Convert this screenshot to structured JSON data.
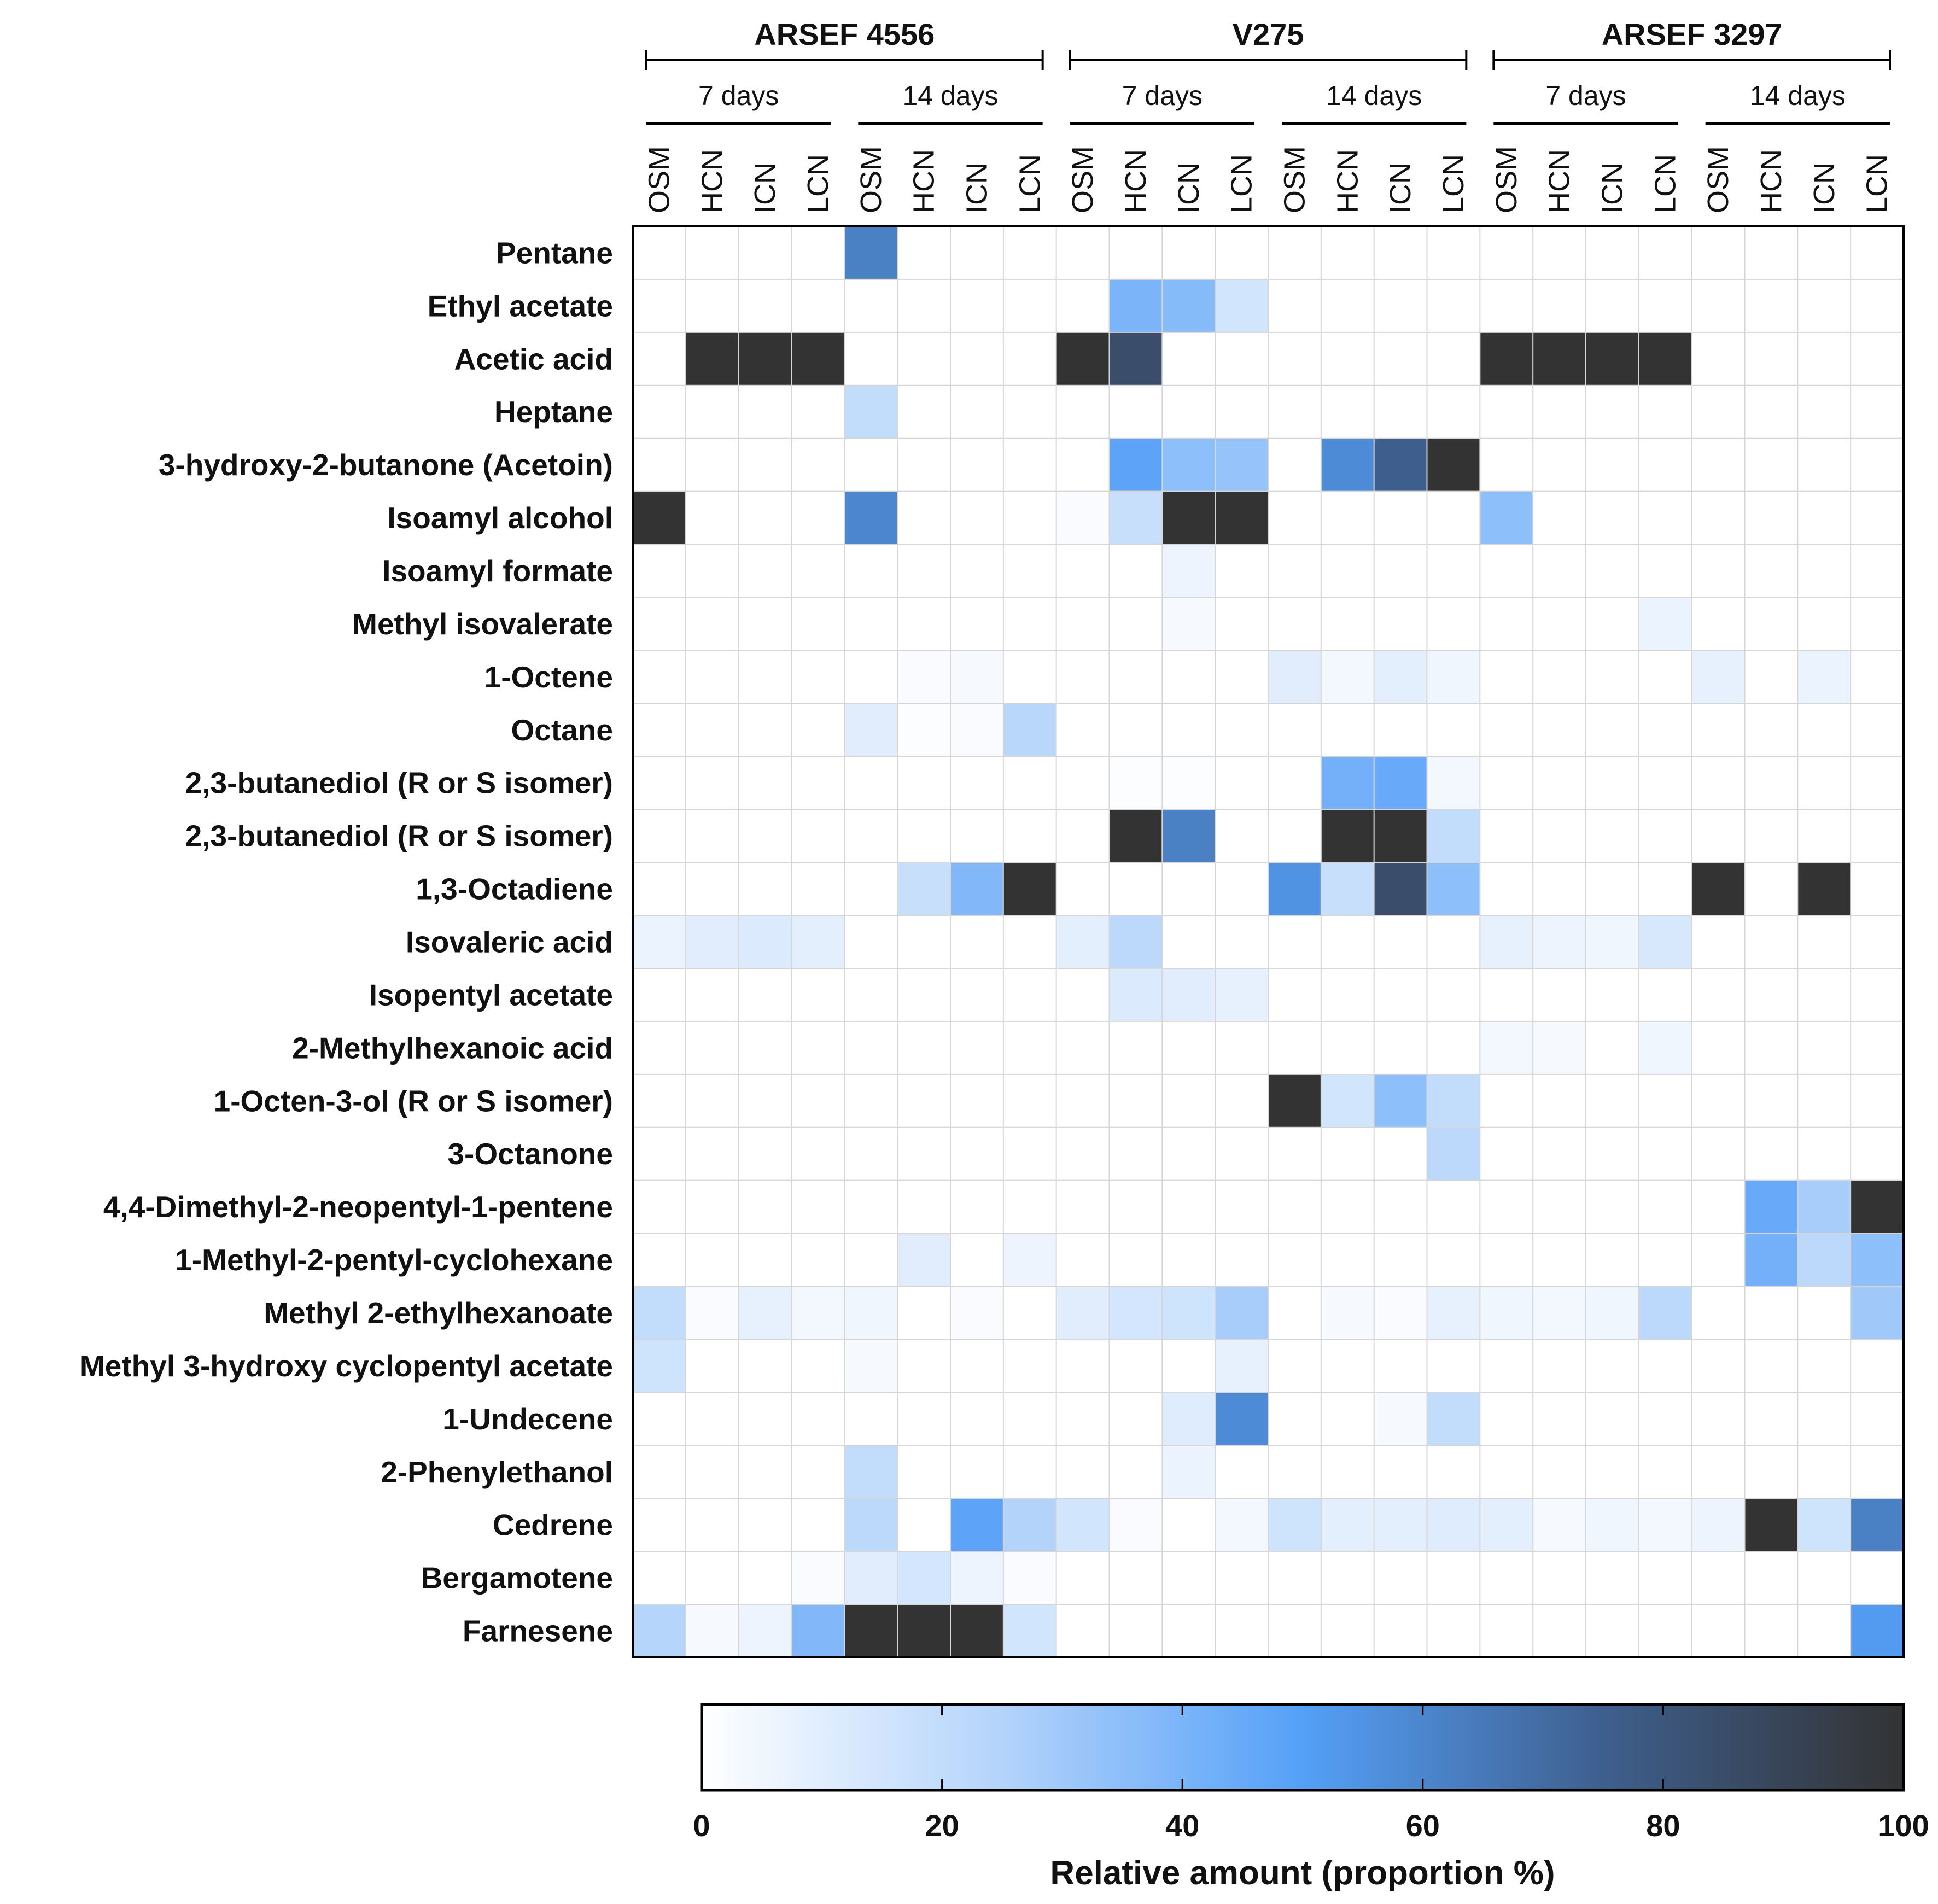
{
  "chart_data": {
    "type": "heatmap",
    "title": "",
    "strains": [
      {
        "name": "ARSEF 4556",
        "periods": [
          "7 days",
          "14 days"
        ]
      },
      {
        "name": "V275",
        "periods": [
          "7 days",
          "14 days"
        ]
      },
      {
        "name": "ARSEF 3297",
        "periods": [
          "7 days",
          "14 days"
        ]
      }
    ],
    "conditions": [
      "OSM",
      "HCN",
      "ICN",
      "LCN"
    ],
    "rows": [
      "Pentane",
      "Ethyl acetate",
      "Acetic acid",
      "Heptane",
      "3-hydroxy-2-butanone (Acetoin)",
      "Isoamyl alcohol",
      "Isoamyl formate",
      "Methyl isovalerate",
      "1-Octene",
      "Octane",
      "2,3-butanediol (R or S isomer)",
      "2,3-butanediol (R or S isomer)",
      "1,3-Octadiene",
      "Isovaleric acid",
      "Isopentyl acetate",
      "2-Methylhexanoic acid",
      "1-Octen-3-ol (R or S isomer)",
      "3-Octanone",
      "4,4-Dimethyl-2-neopentyl-1-pentene",
      "1-Methyl-2-pentyl-cyclohexane",
      "Methyl 2-ethylhexanoate",
      "Methyl 3-hydroxy cyclopentyl acetate",
      "1-Undecene",
      "2-Phenylethanol",
      "Cedrene",
      "Bergamotene",
      "Farnesene"
    ],
    "values": [
      [
        0,
        0,
        0,
        0,
        62,
        0,
        0,
        0,
        0,
        0,
        0,
        0,
        0,
        0,
        0,
        0,
        0,
        0,
        0,
        0,
        0,
        0,
        0,
        0
      ],
      [
        0,
        0,
        0,
        0,
        0,
        0,
        0,
        0,
        0,
        40,
        37,
        15,
        0,
        0,
        0,
        0,
        0,
        0,
        0,
        0,
        0,
        0,
        0,
        0
      ],
      [
        0,
        100,
        100,
        100,
        0,
        0,
        0,
        0,
        100,
        85,
        0,
        0,
        0,
        0,
        0,
        0,
        100,
        100,
        100,
        100,
        0,
        0,
        0,
        0
      ],
      [
        0,
        0,
        0,
        0,
        20,
        0,
        0,
        0,
        0,
        0,
        0,
        0,
        0,
        0,
        0,
        0,
        0,
        0,
        0,
        0,
        0,
        0,
        0,
        0
      ],
      [
        0,
        0,
        0,
        0,
        0,
        0,
        0,
        0,
        0,
        48,
        35,
        33,
        0,
        58,
        75,
        100,
        0,
        0,
        0,
        0,
        0,
        0,
        0,
        0
      ],
      [
        100,
        0,
        0,
        0,
        60,
        0,
        0,
        0,
        2,
        18,
        100,
        100,
        0,
        0,
        0,
        0,
        35,
        0,
        0,
        0,
        0,
        0,
        0,
        0
      ],
      [
        0,
        0,
        0,
        0,
        0,
        0,
        0,
        0,
        0,
        0,
        6,
        0,
        0,
        0,
        0,
        0,
        0,
        0,
        0,
        0,
        0,
        0,
        0,
        0
      ],
      [
        0,
        0,
        0,
        0,
        0,
        0,
        0,
        0,
        0,
        0,
        3,
        0,
        0,
        0,
        0,
        0,
        0,
        0,
        0,
        7,
        0,
        0,
        0,
        0
      ],
      [
        0,
        0,
        0,
        0,
        0,
        2,
        3,
        0,
        0,
        0,
        0,
        0,
        10,
        4,
        9,
        5,
        0,
        0,
        0,
        0,
        8,
        0,
        7,
        0
      ],
      [
        0,
        0,
        0,
        0,
        10,
        1,
        2,
        23,
        0,
        0,
        0,
        0,
        0,
        0,
        0,
        0,
        0,
        0,
        0,
        0,
        0,
        0,
        0,
        0
      ],
      [
        0,
        0,
        0,
        0,
        0,
        0,
        0,
        0,
        0,
        1,
        1,
        0,
        0,
        42,
        45,
        4,
        0,
        0,
        0,
        0,
        0,
        0,
        0,
        0
      ],
      [
        0,
        0,
        0,
        0,
        0,
        0,
        0,
        0,
        0,
        100,
        62,
        0,
        0,
        100,
        100,
        20,
        0,
        0,
        0,
        0,
        0,
        0,
        0,
        0
      ],
      [
        0,
        0,
        0,
        0,
        0,
        18,
        38,
        100,
        0,
        0,
        0,
        0,
        55,
        18,
        85,
        35,
        0,
        0,
        0,
        0,
        100,
        0,
        100,
        0
      ],
      [
        7,
        10,
        12,
        9,
        0,
        0,
        0,
        0,
        9,
        22,
        0,
        0,
        0,
        0,
        0,
        0,
        8,
        6,
        5,
        13,
        0,
        0,
        0,
        0
      ],
      [
        0,
        0,
        0,
        0,
        0,
        0,
        0,
        0,
        0,
        12,
        10,
        8,
        0,
        0,
        0,
        0,
        0,
        0,
        0,
        0,
        0,
        0,
        0,
        0
      ],
      [
        0,
        0,
        0,
        0,
        0,
        0,
        0,
        0,
        0,
        0,
        0,
        0,
        0,
        0,
        0,
        0,
        4,
        3,
        0,
        5,
        0,
        0,
        0,
        0
      ],
      [
        0,
        0,
        0,
        0,
        0,
        0,
        0,
        0,
        0,
        0,
        0,
        0,
        100,
        15,
        35,
        20,
        0,
        0,
        0,
        0,
        0,
        0,
        0,
        0
      ],
      [
        0,
        0,
        0,
        0,
        0,
        0,
        0,
        0,
        0,
        0,
        0,
        0,
        0,
        0,
        0,
        22,
        0,
        0,
        0,
        0,
        0,
        0,
        0,
        0
      ],
      [
        0,
        0,
        0,
        0,
        0,
        0,
        0,
        0,
        0,
        0,
        0,
        0,
        0,
        0,
        0,
        0,
        0,
        0,
        0,
        0,
        0,
        45,
        28,
        100
      ],
      [
        0,
        0,
        0,
        0,
        0,
        10,
        0,
        6,
        0,
        0,
        0,
        0,
        0,
        0,
        0,
        0,
        0,
        0,
        0,
        0,
        0,
        42,
        22,
        35
      ],
      [
        20,
        2,
        8,
        4,
        5,
        0,
        2,
        0,
        10,
        14,
        16,
        28,
        0,
        3,
        2,
        8,
        5,
        4,
        5,
        22,
        0,
        0,
        0,
        30
      ],
      [
        16,
        0,
        0,
        0,
        3,
        0,
        0,
        0,
        0,
        0,
        0,
        8,
        0,
        0,
        0,
        0,
        0,
        0,
        0,
        0,
        0,
        0,
        0,
        0
      ],
      [
        0,
        0,
        0,
        0,
        0,
        0,
        0,
        0,
        0,
        0,
        11,
        58,
        0,
        0,
        3,
        20,
        0,
        0,
        0,
        0,
        0,
        0,
        0,
        0
      ],
      [
        0,
        0,
        0,
        0,
        20,
        0,
        0,
        0,
        0,
        0,
        7,
        0,
        0,
        0,
        0,
        0,
        0,
        0,
        0,
        0,
        0,
        0,
        0,
        0
      ],
      [
        0,
        0,
        0,
        0,
        22,
        0,
        48,
        25,
        15,
        2,
        0,
        4,
        16,
        9,
        9,
        11,
        9,
        3,
        5,
        4,
        6,
        100,
        16,
        62
      ],
      [
        0,
        0,
        0,
        2,
        10,
        14,
        6,
        2,
        0,
        0,
        0,
        0,
        0,
        0,
        0,
        0,
        0,
        0,
        0,
        0,
        0,
        0,
        0,
        0
      ],
      [
        24,
        3,
        6,
        38,
        100,
        100,
        100,
        15,
        0,
        0,
        0,
        0,
        0,
        0,
        0,
        0,
        0,
        0,
        0,
        0,
        0,
        0,
        0,
        52
      ]
    ],
    "colorbar": {
      "label": "Relative amount (proportion %)",
      "range": [
        0,
        100
      ],
      "ticks": [
        "0",
        "20",
        "40",
        "60",
        "80",
        "100"
      ],
      "colors": [
        "#ffffff",
        "#b3d3fb",
        "#55a0f8",
        "#3e5f8e",
        "#333333"
      ]
    },
    "grid": true
  }
}
